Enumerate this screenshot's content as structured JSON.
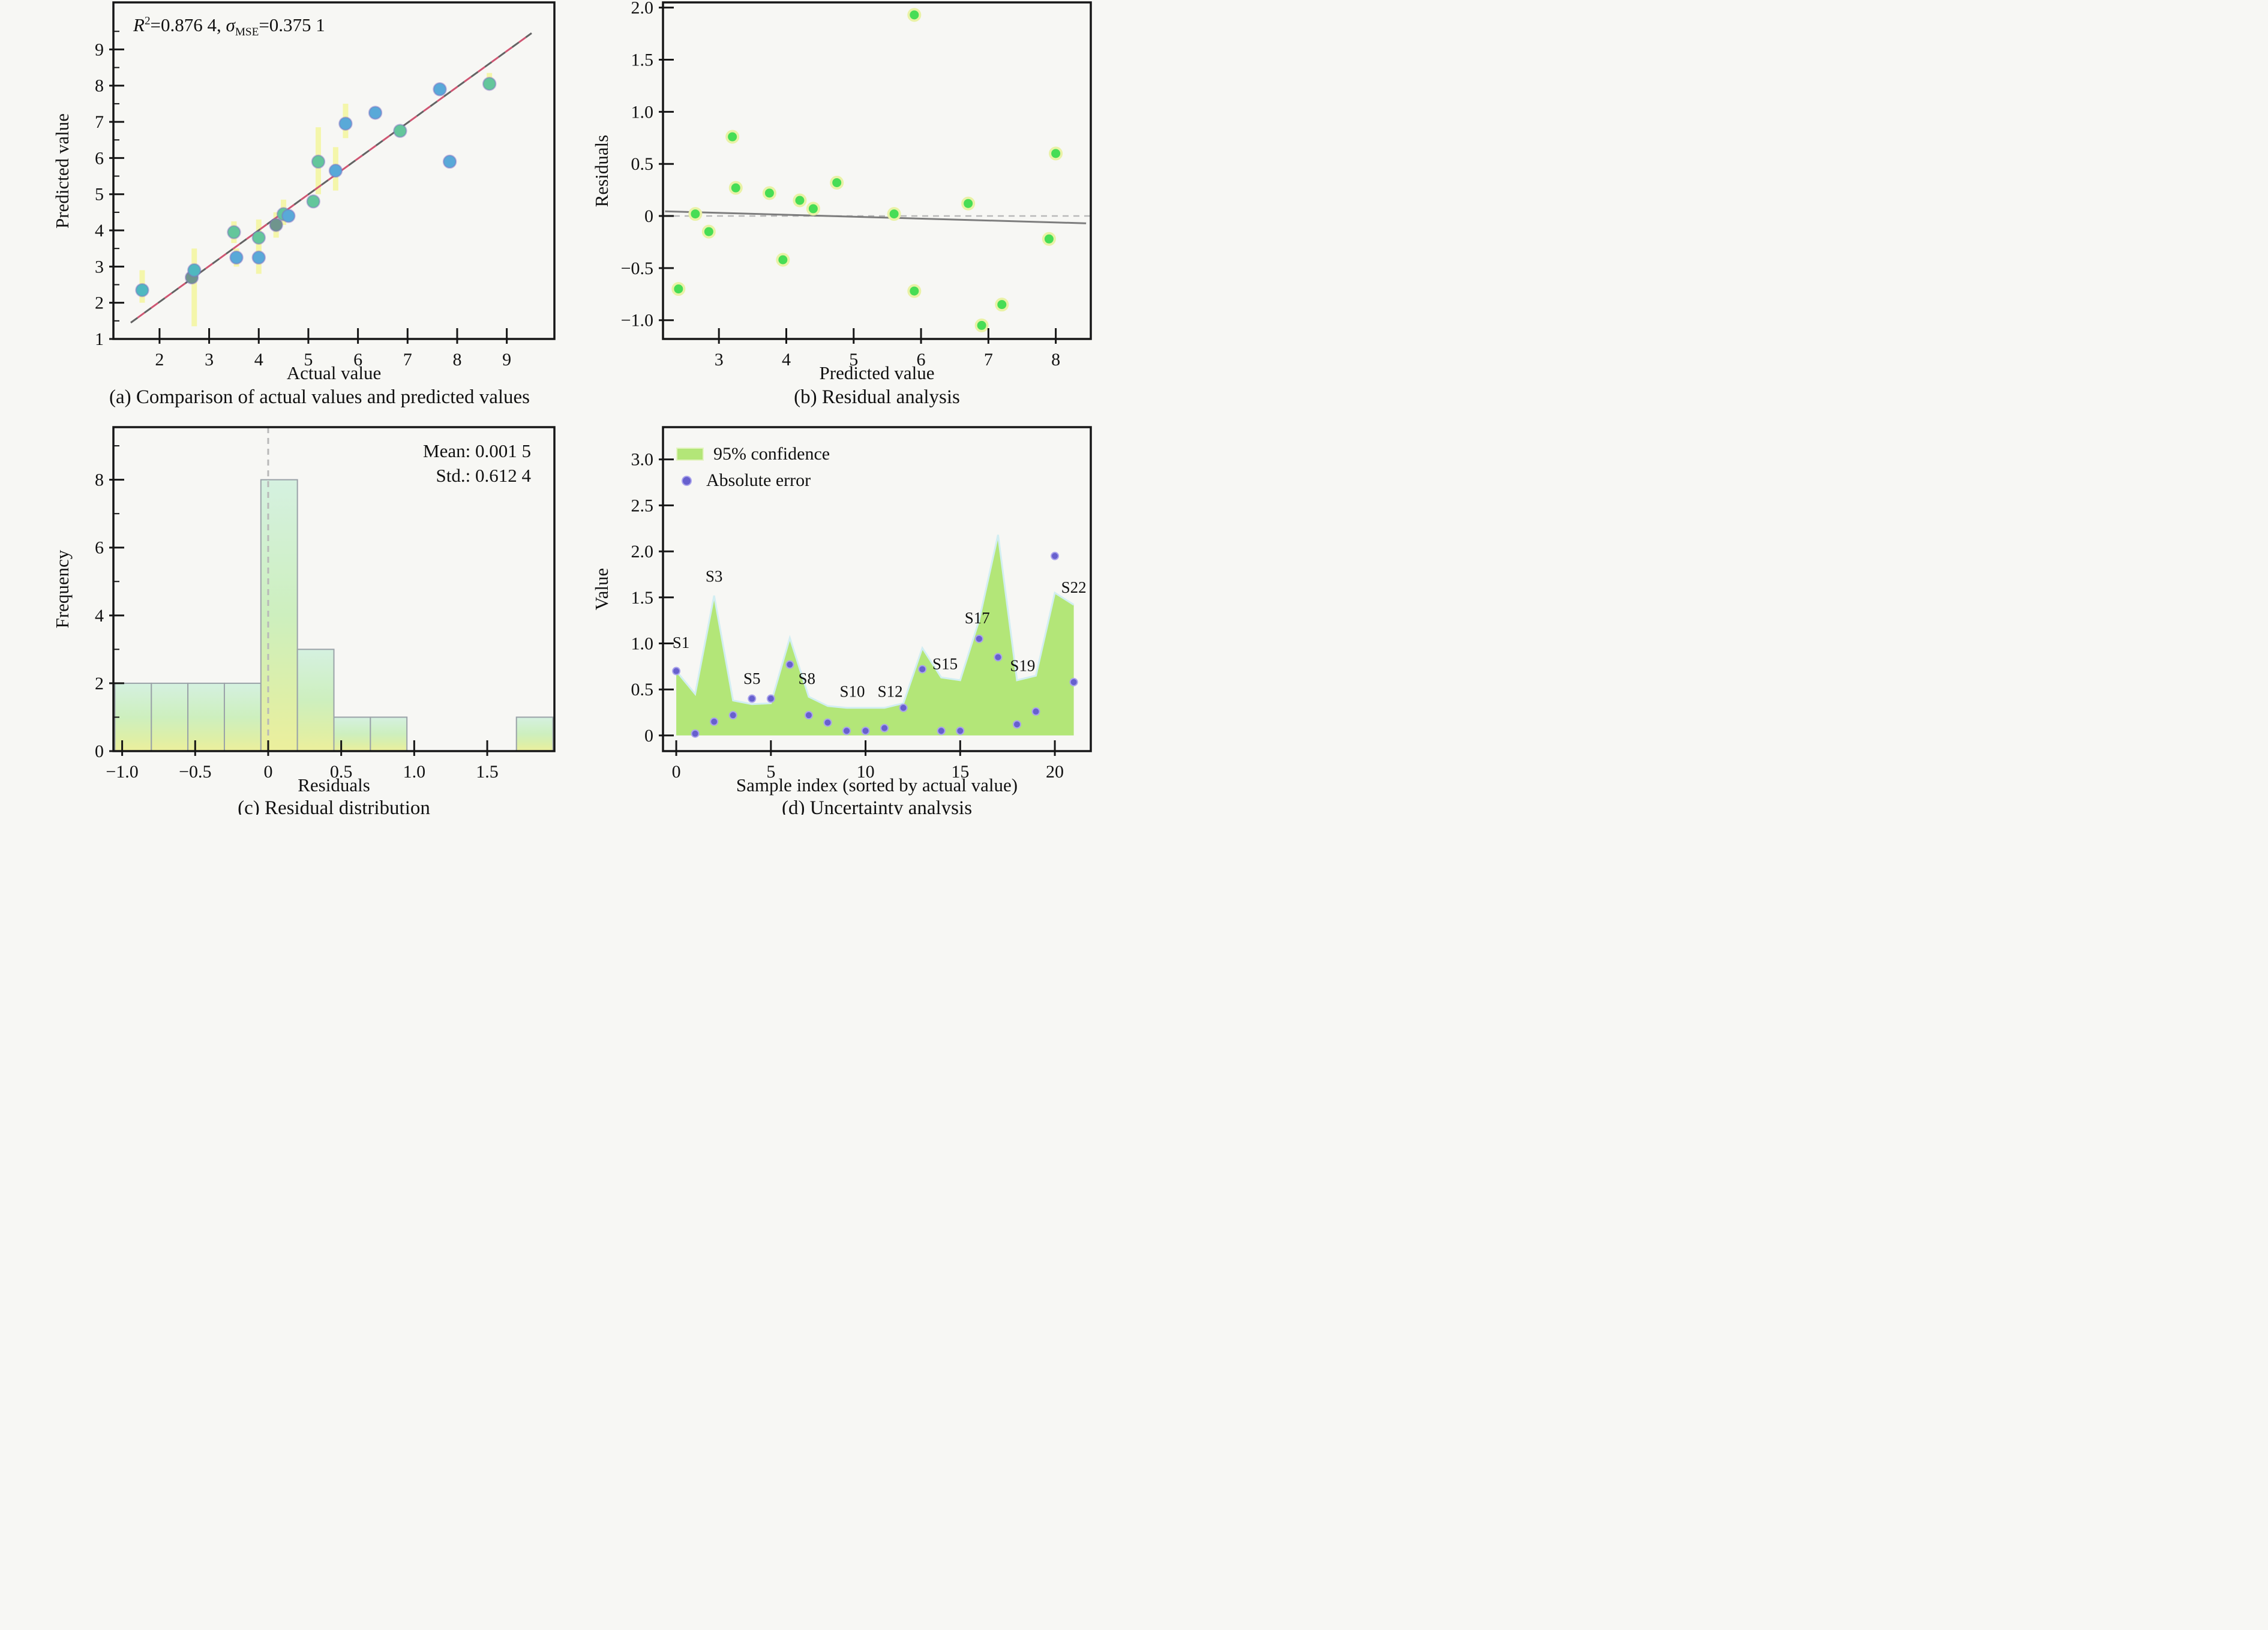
{
  "panel_a": {
    "caption": "(a) Comparison of actual values and predicted values",
    "xlabel": "Actual value",
    "ylabel": "Predicted value",
    "annotation": {
      "r": "R",
      "r_sup": "2",
      "r_eq": "=0.876 4, ",
      "sigma": "σ",
      "sigma_sub": "MSE",
      "sigma_eq": "=0.375 1"
    }
  },
  "panel_b": {
    "caption": "(b) Residual analysis",
    "xlabel": "Predicted value",
    "ylabel": "Residuals"
  },
  "panel_c": {
    "caption": "(c) Residual distribution",
    "xlabel": "Residuals",
    "ylabel": "Frequency",
    "mean_label": "Mean: 0.001 5",
    "std_label": "Std.: 0.612 4"
  },
  "panel_d": {
    "caption": "(d) Uncertainty analysis",
    "xlabel": "Sample index (sorted by actual value)",
    "ylabel": "Value",
    "legend": [
      {
        "swatch": "area-swatch",
        "label": "95% confidence"
      },
      {
        "swatch": "dot-swatch",
        "label": "Absolute error"
      }
    ]
  },
  "colors": {
    "frame": "#161616",
    "diag_red": "#cf5572",
    "diag_gray": "#636363",
    "err_bar": "#f4f6a3",
    "point_teal": "#4fb8c0",
    "point_green": "#63c69b",
    "point_blue": "#59a9d8",
    "point_dark": "#6f958d",
    "point_edge": "rgba(130,110,195,0.45)",
    "resid_green": "#47dd55",
    "resid_ring": "#e9f2a6",
    "trend_gray": "#7d7d7d",
    "dash_gray": "#b9b9b9",
    "hist_edge": "#9aa2a8",
    "hist_top": "#d5f1e0",
    "hist_mid1": "#cdefbe",
    "hist_mid2": "#ddefa8",
    "hist_bottom": "#ecef9c",
    "area_green": "#b3e678",
    "area_edge": "#d2eef2",
    "dot_purple": "#6760ce",
    "dot_ring": "#a9a2ec"
  },
  "chart_data": [
    {
      "type": "scatter",
      "panel": "a",
      "title": "",
      "x": {
        "label": "Actual value",
        "domain": [
          1.07,
          9.96
        ],
        "ticks": [
          2,
          3,
          4,
          5,
          6,
          7,
          8,
          9
        ],
        "labels": [
          "2",
          "3",
          "4",
          "5",
          "6",
          "7",
          "8",
          "9"
        ]
      },
      "y": {
        "label": "Predicted value",
        "domain": [
          1,
          10.3
        ],
        "ticks": [
          1,
          2,
          3,
          4,
          5,
          6,
          7,
          8,
          9
        ],
        "labels": [
          "1",
          "2",
          "3",
          "4",
          "5",
          "6",
          "7",
          "8",
          "9"
        ],
        "minor": [
          1.5,
          2.5,
          3.5,
          4.5,
          5.5,
          6.5,
          7.5,
          8.5,
          9.5
        ]
      },
      "r2": "0.876 4",
      "sigma_mse": "0.375 1",
      "identity_line": {
        "x1": 1.42,
        "y1": 1.45,
        "x2": 9.5,
        "y2": 9.45
      },
      "points": [
        {
          "x": 1.65,
          "y": 2.35,
          "color": "teal",
          "err_lo": 0.35,
          "err_hi": 0.55
        },
        {
          "x": 2.65,
          "y": 2.7,
          "color": "dark",
          "err_lo": 0,
          "err_hi": 0
        },
        {
          "x": 2.7,
          "y": 2.9,
          "color": "teal",
          "err_lo": 1.55,
          "err_hi": 0.6
        },
        {
          "x": 3.5,
          "y": 3.95,
          "color": "green",
          "err_lo": 0.3,
          "err_hi": 0.3
        },
        {
          "x": 3.55,
          "y": 3.25,
          "color": "blue",
          "err_lo": 0.25,
          "err_hi": 0.25
        },
        {
          "x": 4.0,
          "y": 3.8,
          "color": "green",
          "err_lo": 0.5,
          "err_hi": 0.5
        },
        {
          "x": 4.0,
          "y": 3.25,
          "color": "blue",
          "err_lo": 0.45,
          "err_hi": 0.5
        },
        {
          "x": 4.35,
          "y": 4.15,
          "color": "dark",
          "err_lo": 0.35,
          "err_hi": 0.35
        },
        {
          "x": 4.5,
          "y": 4.45,
          "color": "green",
          "err_lo": 0.3,
          "err_hi": 0.4
        },
        {
          "x": 4.6,
          "y": 4.4,
          "color": "blue",
          "err_lo": 0,
          "err_hi": 0
        },
        {
          "x": 5.1,
          "y": 4.8,
          "color": "green",
          "err_lo": 0,
          "err_hi": 0
        },
        {
          "x": 5.2,
          "y": 5.9,
          "color": "green",
          "err_lo": 0.9,
          "err_hi": 0.95
        },
        {
          "x": 5.55,
          "y": 5.65,
          "color": "blue",
          "err_lo": 0.55,
          "err_hi": 0.65
        },
        {
          "x": 5.75,
          "y": 6.95,
          "color": "blue",
          "err_lo": 0.4,
          "err_hi": 0.55
        },
        {
          "x": 6.35,
          "y": 7.25,
          "color": "blue",
          "err_lo": 0,
          "err_hi": 0
        },
        {
          "x": 6.85,
          "y": 6.75,
          "color": "green",
          "err_lo": 0,
          "err_hi": 0
        },
        {
          "x": 7.65,
          "y": 7.9,
          "color": "blue",
          "err_lo": 0,
          "err_hi": 0
        },
        {
          "x": 7.85,
          "y": 5.9,
          "color": "blue",
          "err_lo": 0,
          "err_hi": 0
        },
        {
          "x": 8.65,
          "y": 8.05,
          "color": "green",
          "err_lo": 0.1,
          "err_hi": 0.3
        }
      ]
    },
    {
      "type": "scatter",
      "panel": "b",
      "title": "",
      "x": {
        "label": "Predicted value",
        "domain": [
          2.17,
          8.52
        ],
        "ticks": [
          3,
          4,
          5,
          6,
          7,
          8
        ],
        "labels": [
          "3",
          "4",
          "5",
          "6",
          "7",
          "8"
        ]
      },
      "y": {
        "label": "Residuals",
        "domain": [
          -1.18,
          2.05
        ],
        "ticks": [
          2.0,
          1.5,
          1.0,
          0.5,
          0,
          -0.5,
          -1.0
        ],
        "labels": [
          "2.0",
          "1.5",
          "1.0",
          "0.5",
          "0",
          "−0.5",
          "−1.0"
        ]
      },
      "zero_line": true,
      "trend": {
        "x1": 2.2,
        "y1": 0.045,
        "x2": 8.45,
        "y2": -0.07
      },
      "points": [
        {
          "x": 2.4,
          "y": -0.7
        },
        {
          "x": 2.65,
          "y": 0.02
        },
        {
          "x": 2.85,
          "y": -0.15
        },
        {
          "x": 3.2,
          "y": 0.76
        },
        {
          "x": 3.25,
          "y": 0.27
        },
        {
          "x": 3.75,
          "y": 0.22
        },
        {
          "x": 3.95,
          "y": -0.42
        },
        {
          "x": 4.2,
          "y": 0.15
        },
        {
          "x": 4.4,
          "y": 0.07
        },
        {
          "x": 4.75,
          "y": 0.32
        },
        {
          "x": 5.6,
          "y": 0.02
        },
        {
          "x": 5.9,
          "y": 1.93
        },
        {
          "x": 5.9,
          "y": -0.72
        },
        {
          "x": 6.7,
          "y": 0.12
        },
        {
          "x": 6.9,
          "y": -1.05
        },
        {
          "x": 7.2,
          "y": -0.85
        },
        {
          "x": 7.9,
          "y": -0.22
        },
        {
          "x": 8.0,
          "y": 0.6
        }
      ]
    },
    {
      "type": "histogram",
      "panel": "c",
      "title": "",
      "x": {
        "label": "Residuals",
        "domain": [
          -1.06,
          1.96
        ],
        "ticks": [
          -1.0,
          -0.5,
          0,
          0.5,
          1.0,
          1.5
        ],
        "labels": [
          "−1.0",
          "−0.5",
          "0",
          "0.5",
          "1.0",
          "1.5"
        ]
      },
      "y": {
        "label": "Frequency",
        "domain": [
          0,
          9.55
        ],
        "ticks": [
          0,
          2,
          4,
          6,
          8
        ],
        "labels": [
          "0",
          "2",
          "4",
          "6",
          "8"
        ],
        "minor": [
          1,
          3,
          5,
          7,
          9
        ]
      },
      "bins": {
        "start": -1.05,
        "width": 0.25,
        "counts": [
          2,
          2,
          2,
          2,
          8,
          3,
          1,
          1,
          0,
          0,
          0,
          1
        ]
      },
      "mean": "0.001 5",
      "std": "0.612 4",
      "mean_line_x": 0
    },
    {
      "type": "area",
      "panel": "d",
      "title": "",
      "x": {
        "label": "Sample index (sorted by actual value)",
        "domain": [
          -0.7,
          21.9
        ],
        "ticks": [
          0,
          5,
          10,
          15,
          20
        ],
        "labels": [
          "0",
          "5",
          "10",
          "15",
          "20"
        ]
      },
      "y": {
        "label": "Value",
        "domain": [
          -0.17,
          3.35
        ],
        "ticks": [
          0,
          0.5,
          1.0,
          1.5,
          2.0,
          2.5,
          3.0
        ],
        "labels": [
          "0",
          "0.5",
          "1.0",
          "1.5",
          "2.0",
          "2.5",
          "3.0"
        ]
      },
      "sample_index": [
        0,
        1,
        2,
        3,
        4,
        5,
        6,
        7,
        8,
        9,
        10,
        11,
        12,
        13,
        14,
        15,
        16,
        17,
        18,
        19,
        20,
        21
      ],
      "confidence_95": [
        0.7,
        0.45,
        1.52,
        0.38,
        0.34,
        0.35,
        1.06,
        0.42,
        0.32,
        0.3,
        0.3,
        0.3,
        0.35,
        0.95,
        0.63,
        0.6,
        1.25,
        2.18,
        0.6,
        0.65,
        1.55,
        1.42
      ],
      "absolute_error": [
        0.7,
        0.02,
        0.15,
        0.22,
        0.4,
        0.4,
        0.77,
        0.22,
        0.14,
        0.05,
        0.05,
        0.08,
        0.3,
        0.72,
        0.05,
        0.05,
        1.05,
        0.85,
        0.12,
        0.26,
        1.95,
        0.58
      ],
      "sample_labels": [
        {
          "text": "S1",
          "x": 0.25,
          "y": 0.95
        },
        {
          "text": "S3",
          "x": 2.0,
          "y": 1.67
        },
        {
          "text": "S5",
          "x": 4.0,
          "y": 0.56
        },
        {
          "text": "S8",
          "x": 6.9,
          "y": 0.56
        },
        {
          "text": "S10",
          "x": 9.3,
          "y": 0.42
        },
        {
          "text": "S12",
          "x": 11.3,
          "y": 0.42
        },
        {
          "text": "S15",
          "x": 14.2,
          "y": 0.72
        },
        {
          "text": "S17",
          "x": 15.9,
          "y": 1.22
        },
        {
          "text": "S19",
          "x": 18.3,
          "y": 0.7
        },
        {
          "text": "S22",
          "x": 21.0,
          "y": 1.55
        }
      ]
    }
  ]
}
